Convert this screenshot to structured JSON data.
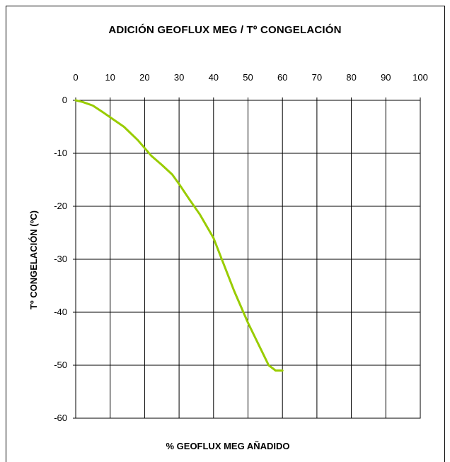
{
  "chart_data": {
    "type": "line",
    "title": "ADICIÓN GEOFLUX MEG / Tº CONGELACIÓN",
    "xlabel": "% GEOFLUX MEG AÑADIDO",
    "ylabel": "Tº CONGELACIÓN (ºC)",
    "xlim": [
      0,
      100
    ],
    "ylim": [
      -60,
      0
    ],
    "x_ticks": [
      "0",
      "10",
      "20",
      "30",
      "40",
      "50",
      "60",
      "70",
      "80",
      "90",
      "100"
    ],
    "y_ticks": [
      "0",
      "-10",
      "-20",
      "-30",
      "-40",
      "-50",
      "-60"
    ],
    "x_axis_position": "top",
    "grid": true,
    "legend": "none",
    "series": [
      {
        "color": "#99cc00",
        "x": [
          0,
          2,
          5,
          8,
          10,
          14,
          18,
          22,
          25,
          28,
          30,
          33,
          36,
          40,
          43,
          46,
          50,
          53,
          56,
          58,
          60
        ],
        "y": [
          0,
          -0.3,
          -1,
          -2.3,
          -3.2,
          -5,
          -7.5,
          -10.5,
          -12.2,
          -14,
          -15.8,
          -18.7,
          -21.5,
          -26,
          -31,
          -36,
          -42,
          -46,
          -50,
          -51,
          -51
        ]
      }
    ]
  }
}
